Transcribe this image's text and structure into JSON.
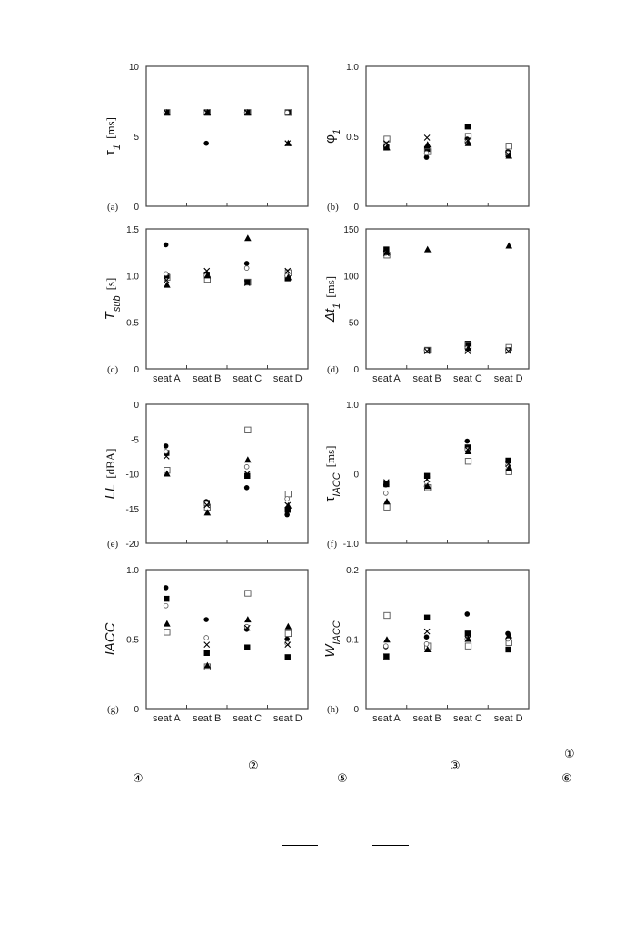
{
  "markers": [
    "filled-circle",
    "filled-square",
    "open-square",
    "open-circle",
    "cross",
    "filled-triangle"
  ],
  "chart_data": [
    {
      "type": "scatter",
      "tag": "(a)",
      "ylabel": {
        "main": "τ",
        "sub": "1",
        "unit": "[ms]"
      },
      "ylim": [
        0,
        10
      ],
      "yticks": [
        "0",
        "5",
        "10"
      ],
      "categories": [],
      "series": [
        {
          "marker": "filled-circle",
          "values": [
            6.7,
            4.5,
            6.7,
            6.7
          ]
        },
        {
          "marker": "filled-square",
          "values": [
            6.7,
            6.7,
            6.7,
            6.7
          ]
        },
        {
          "marker": "open-square",
          "values": [
            6.7,
            6.7,
            6.7,
            6.7
          ]
        },
        {
          "marker": "open-circle",
          "values": [
            6.7,
            6.7,
            6.7,
            6.7
          ]
        },
        {
          "marker": "cross",
          "values": [
            6.7,
            6.7,
            6.7,
            4.5
          ]
        },
        {
          "marker": "filled-triangle",
          "values": [
            6.7,
            6.7,
            6.7,
            4.5
          ]
        }
      ]
    },
    {
      "type": "scatter",
      "tag": "(b)",
      "ylabel": {
        "main": "φ",
        "sub": "1",
        "unit": ""
      },
      "ylim": [
        0,
        1
      ],
      "yticks": [
        "0",
        "0.5",
        "1.0"
      ],
      "categories": [],
      "series": [
        {
          "marker": "filled-circle",
          "values": [
            0.43,
            0.35,
            0.48,
            0.39
          ]
        },
        {
          "marker": "filled-square",
          "values": [
            0.42,
            0.41,
            0.57,
            0.38
          ]
        },
        {
          "marker": "open-square",
          "values": [
            0.48,
            0.39,
            0.5,
            0.43
          ]
        },
        {
          "marker": "open-circle",
          "values": [
            0.44,
            0.38,
            0.46,
            0.38
          ]
        },
        {
          "marker": "cross",
          "values": [
            0.45,
            0.49,
            0.47,
            0.37
          ]
        },
        {
          "marker": "filled-triangle",
          "values": [
            0.42,
            0.44,
            0.45,
            0.36
          ]
        }
      ]
    },
    {
      "type": "scatter",
      "tag": "(c)",
      "ylabel": {
        "main": "T",
        "sub": "sub",
        "unit": "[s]"
      },
      "ylim": [
        0,
        1.5
      ],
      "yticks": [
        "0",
        "0.5",
        "1.0",
        "1.5"
      ],
      "categories": [
        "seat A",
        "seat B",
        "seat C",
        "seat D"
      ],
      "series": [
        {
          "marker": "filled-circle",
          "values": [
            1.33,
            1.02,
            1.13,
            1.0
          ]
        },
        {
          "marker": "filled-square",
          "values": [
            1.0,
            1.01,
            0.93,
            0.97
          ]
        },
        {
          "marker": "open-square",
          "values": [
            0.98,
            0.96,
            0.93,
            1.03
          ]
        },
        {
          "marker": "open-circle",
          "values": [
            1.02,
            1.0,
            1.08,
            1.0
          ]
        },
        {
          "marker": "cross",
          "values": [
            0.95,
            1.05,
            0.92,
            1.05
          ]
        },
        {
          "marker": "filled-triangle",
          "values": [
            0.9,
            1.0,
            1.4,
            0.98
          ]
        }
      ]
    },
    {
      "type": "scatter",
      "tag": "(d)",
      "ylabel": {
        "main": "Δt",
        "sub": "1",
        "unit": "[ms]"
      },
      "ylim": [
        0,
        150
      ],
      "yticks": [
        "0",
        "50",
        "100",
        "150"
      ],
      "categories": [
        "seat A",
        "seat B",
        "seat C",
        "seat D"
      ],
      "series": [
        {
          "marker": "filled-circle",
          "values": [
            126,
            20,
            24,
            20
          ]
        },
        {
          "marker": "filled-square",
          "values": [
            128,
            20,
            27,
            20
          ]
        },
        {
          "marker": "open-square",
          "values": [
            122,
            20,
            25,
            23
          ]
        },
        {
          "marker": "open-circle",
          "values": [
            124,
            20,
            22,
            20
          ]
        },
        {
          "marker": "cross",
          "values": [
            124,
            19,
            19,
            19
          ]
        },
        {
          "marker": "filled-triangle",
          "values": [
            125,
            128,
            22,
            132
          ]
        }
      ]
    },
    {
      "type": "scatter",
      "tag": "(e)",
      "ylabel": {
        "main": "LL",
        "sub": "",
        "unit": "[dBA]"
      },
      "ylim": [
        -20,
        0
      ],
      "yticks": [
        "-20",
        "-15",
        "-10",
        "-5",
        "0"
      ],
      "categories": [],
      "series": [
        {
          "marker": "filled-circle",
          "values": [
            -6,
            -14,
            -12,
            -15.9
          ]
        },
        {
          "marker": "filled-square",
          "values": [
            -7,
            -14.2,
            -10.3,
            -15.2
          ]
        },
        {
          "marker": "open-square",
          "values": [
            -9.5,
            -14.8,
            -3.7,
            -12.9
          ]
        },
        {
          "marker": "open-circle",
          "values": [
            -6.8,
            -14.3,
            -9,
            -13.6
          ]
        },
        {
          "marker": "cross",
          "values": [
            -7.5,
            -14.5,
            -10,
            -14.5
          ]
        },
        {
          "marker": "filled-triangle",
          "values": [
            -10,
            -15.6,
            -8,
            -14.6
          ]
        }
      ]
    },
    {
      "type": "scatter",
      "tag": "(f)",
      "ylabel": {
        "main": "τ",
        "sub": "IACC",
        "unit": "[ms]"
      },
      "ylim": [
        -1,
        1
      ],
      "yticks": [
        "-1.0",
        "0",
        "1.0"
      ],
      "categories": [],
      "series": [
        {
          "marker": "filled-circle",
          "values": [
            -0.16,
            -0.18,
            0.47,
            0.18
          ]
        },
        {
          "marker": "filled-square",
          "values": [
            -0.15,
            -0.03,
            0.38,
            0.19
          ]
        },
        {
          "marker": "open-square",
          "values": [
            -0.48,
            -0.2,
            0.18,
            0.03
          ]
        },
        {
          "marker": "open-circle",
          "values": [
            -0.28,
            -0.12,
            0.35,
            0.12
          ]
        },
        {
          "marker": "cross",
          "values": [
            -0.12,
            -0.08,
            0.35,
            0.14
          ]
        },
        {
          "marker": "filled-triangle",
          "values": [
            -0.4,
            -0.18,
            0.32,
            0.08
          ]
        }
      ]
    },
    {
      "type": "scatter",
      "tag": "(g)",
      "ylabel": {
        "main": "IACC",
        "sub": "",
        "unit": ""
      },
      "ylim": [
        0,
        1
      ],
      "yticks": [
        "0",
        "0.5",
        "1.0"
      ],
      "categories": [
        "seat A",
        "seat B",
        "seat C",
        "seat D"
      ],
      "series": [
        {
          "marker": "filled-circle",
          "values": [
            0.87,
            0.64,
            0.57,
            0.5
          ]
        },
        {
          "marker": "filled-square",
          "values": [
            0.79,
            0.4,
            0.44,
            0.37
          ]
        },
        {
          "marker": "open-square",
          "values": [
            0.55,
            0.3,
            0.83,
            0.54
          ]
        },
        {
          "marker": "open-circle",
          "values": [
            0.74,
            0.51,
            0.59,
            0.47
          ]
        },
        {
          "marker": "cross",
          "values": [
            0.79,
            0.46,
            0.58,
            0.46
          ]
        },
        {
          "marker": "filled-triangle",
          "values": [
            0.61,
            0.31,
            0.64,
            0.59
          ]
        }
      ]
    },
    {
      "type": "scatter",
      "tag": "(h)",
      "ylabel": {
        "main": "W",
        "sub": "IACC",
        "unit": ""
      },
      "ylim": [
        0,
        0.2
      ],
      "yticks": [
        "0",
        "0.1",
        "0.2"
      ],
      "categories": [
        "seat A",
        "seat B",
        "seat C",
        "seat D"
      ],
      "series": [
        {
          "marker": "filled-circle",
          "values": [
            0.089,
            0.103,
            0.136,
            0.108
          ]
        },
        {
          "marker": "filled-square",
          "values": [
            0.075,
            0.131,
            0.108,
            0.085
          ]
        },
        {
          "marker": "open-square",
          "values": [
            0.134,
            0.09,
            0.09,
            0.095
          ]
        },
        {
          "marker": "open-circle",
          "values": [
            0.09,
            0.093,
            0.1,
            0.1
          ]
        },
        {
          "marker": "cross",
          "values": [
            0.075,
            0.111,
            0.1,
            0.104
          ]
        },
        {
          "marker": "filled-triangle",
          "values": [
            0.099,
            0.085,
            0.1,
            0.105
          ]
        }
      ]
    }
  ],
  "notes": [
    "①",
    "④",
    "②",
    "⑤",
    "③",
    "⑥"
  ]
}
